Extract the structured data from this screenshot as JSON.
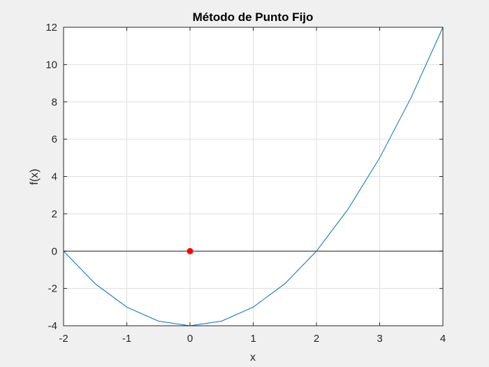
{
  "chart_data": {
    "type": "line",
    "title": "Método de Punto Fijo",
    "xlabel": "x",
    "ylabel": "f(x)",
    "xlim": [
      -2,
      4
    ],
    "ylim": [
      -4,
      12
    ],
    "grid": true,
    "x_ticks": [
      "-2",
      "-1",
      "0",
      "1",
      "2",
      "3",
      "4"
    ],
    "y_ticks": [
      "-4",
      "-2",
      "0",
      "2",
      "4",
      "6",
      "8",
      "10",
      "12"
    ],
    "series": [
      {
        "color": "#0072bd",
        "x": [
          -2,
          -1.5,
          -1,
          -0.5,
          0,
          0.5,
          1,
          1.5,
          2,
          2.5,
          3,
          3.5,
          4
        ],
        "y": [
          0,
          -1.75,
          -3,
          -3.75,
          -4,
          -3.75,
          -3,
          -1.75,
          0,
          2.25,
          5,
          8.25,
          12
        ]
      }
    ],
    "zero_line": {
      "y": 0,
      "color": "#262626"
    },
    "points": [
      {
        "x": 0,
        "y": 0,
        "color": "#ff0000"
      }
    ]
  }
}
